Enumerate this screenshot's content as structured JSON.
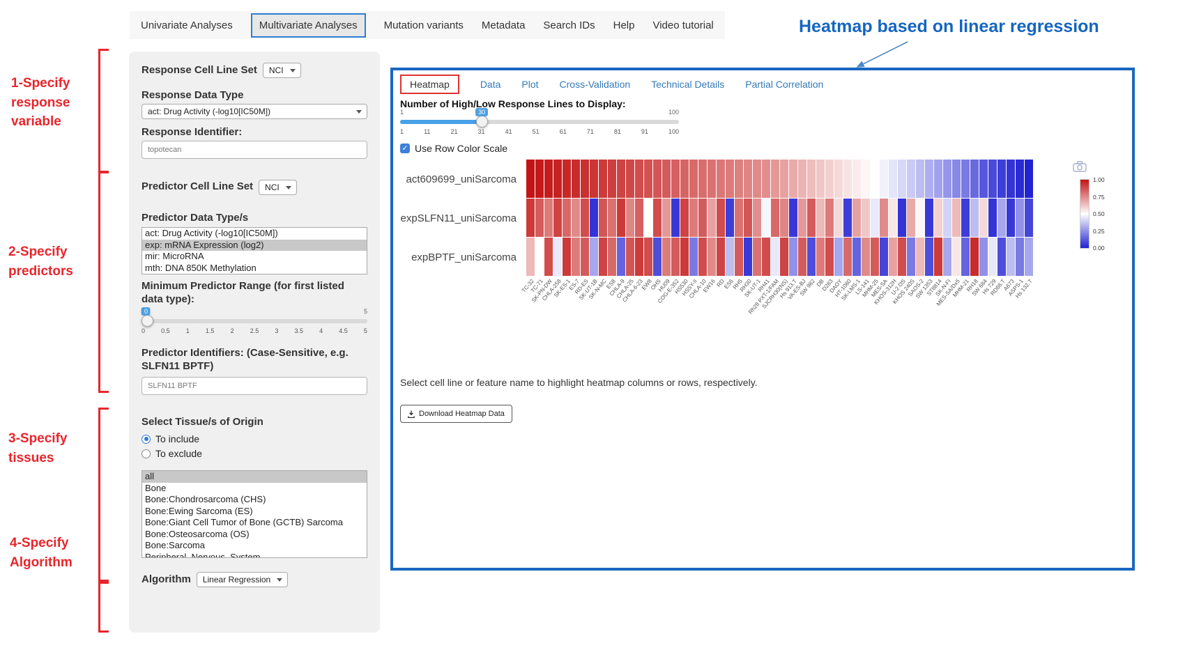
{
  "nav": {
    "items": [
      "Univariate Analyses",
      "Multivariate Analyses",
      "Mutation variants",
      "Metadata",
      "Search IDs",
      "Help",
      "Video tutorial"
    ],
    "active": "Multivariate Analyses"
  },
  "annotation": {
    "heading": "Heatmap based on linear regression",
    "steps": [
      "1-Specify\nresponse\nvariable",
      "2-Specify\npredictors",
      "3-Specify\ntissues",
      "4-Specify\nAlgorithm"
    ],
    "accent_color": "#e8252c",
    "heading_color": "#1565c0"
  },
  "sidebar": {
    "response_cell_line_set_label": "Response Cell Line Set",
    "response_cell_line_set_value": "NCI",
    "response_data_type_label": "Response Data Type",
    "response_data_type_value": "act: Drug Activity (-log10[IC50M])",
    "response_identifier_label": "Response Identifier:",
    "response_identifier_value": "topotecan",
    "predictor_cell_line_set_label": "Predictor Cell Line Set",
    "predictor_cell_line_set_value": "NCI",
    "predictor_data_types_label": "Predictor Data Type/s",
    "predictor_data_types_options": [
      "act: Drug Activity (-log10[IC50M])",
      "exp: mRNA Expression (log2)",
      "mir: MicroRNA",
      "mth: DNA 850K Methylation"
    ],
    "predictor_data_types_selected": "exp: mRNA Expression (log2)",
    "min_predictor_range_label": "Minimum Predictor Range (for first listed data type):",
    "min_predictor_range": {
      "min": 0,
      "max": 5,
      "value": 0,
      "min_label": "",
      "max_label": "5",
      "ticks": [
        "0",
        "0.5",
        "1",
        "1.5",
        "2",
        "2.5",
        "3",
        "3.5",
        "4",
        "4.5",
        "5"
      ]
    },
    "predictor_identifiers_label": "Predictor Identifiers: (Case-Sensitive, e.g. SLFN11 BPTF)",
    "predictor_identifiers_value": "SLFN11 BPTF",
    "tissue_label": "Select Tissue/s of Origin",
    "tissue_radios": [
      {
        "label": "To include",
        "selected": true
      },
      {
        "label": "To exclude",
        "selected": false
      }
    ],
    "tissue_options": [
      "all",
      "Bone",
      "Bone:Chondrosarcoma (CHS)",
      "Bone:Ewing Sarcoma (ES)",
      "Bone:Giant Cell Tumor of Bone (GCTB) Sarcoma",
      "Bone:Osteosarcoma (OS)",
      "Bone:Sarcoma",
      "Peripheral_Nervous_System"
    ],
    "tissue_selected": "all",
    "algorithm_label": "Algorithm",
    "algorithm_value": "Linear Regression"
  },
  "main": {
    "tabs": [
      "Heatmap",
      "Data",
      "Plot",
      "Cross-Validation",
      "Technical Details",
      "Partial Correlation"
    ],
    "active_tab": "Heatmap",
    "slider_label": "Number of High/Low Response Lines to Display:",
    "slider": {
      "min": 1,
      "max": 100,
      "value": 30,
      "min_label": "1",
      "max_label": "100",
      "ticks": [
        "1",
        "11",
        "21",
        "31",
        "41",
        "51",
        "61",
        "71",
        "81",
        "91",
        "100"
      ]
    },
    "row_color_scale_label": "Use Row Color Scale",
    "row_color_scale_checked": true,
    "note": "Select cell line or feature name to highlight heatmap columns or rows, respectively.",
    "download_button_label": "Download Heatmap Data"
  },
  "chart_data": {
    "type": "heatmap",
    "title": "",
    "rows": [
      "act609699_uniSarcoma",
      "expSLFN11_uniSarcoma",
      "expBPTF_uniSarcoma"
    ],
    "columns": [
      "TC-32",
      "TC-71",
      "SK-PN-DW",
      "CHLA-258",
      "SK-ES-1",
      "ES-7",
      "RD-ES",
      "SK-UT-1B",
      "SK-N-MC",
      "ES8",
      "CHLA-9",
      "CHLA-25",
      "CHLA-6-23",
      "EW8",
      "OHS",
      "HU09",
      "COG-E-352",
      "HS530",
      "HSSY-II",
      "CHLA-10",
      "EW16",
      "RD",
      "ES6",
      "RH5",
      "RH30",
      "SK-UT-1",
      "RH41",
      "Rh28 PXT-1/FAM",
      "SJCRH30(NS)",
      "Hs 913.T",
      "VA-ES-BJ",
      "SW 982",
      "DB",
      "D283",
      "DAOY",
      "HT-1080",
      "SK-LMS-1",
      "LS-141",
      "MHM-25",
      "MES-SA",
      "KHOS-312H",
      "U-2 OS",
      "KHOS 240S",
      "SAOS-2",
      "SW 1353",
      "ST8814",
      "SK-N-FI",
      "MES-SA/Dx5",
      "MHM-21",
      "RH18",
      "SW 684",
      "Hs 729",
      "RD68.T",
      "A673",
      "ASPS-1",
      "Hs 132.T"
    ],
    "values": [
      [
        1.0,
        0.99,
        0.98,
        0.97,
        0.96,
        0.95,
        0.94,
        0.93,
        0.92,
        0.91,
        0.9,
        0.89,
        0.88,
        0.87,
        0.86,
        0.85,
        0.84,
        0.83,
        0.82,
        0.81,
        0.8,
        0.79,
        0.78,
        0.77,
        0.76,
        0.75,
        0.74,
        0.72,
        0.7,
        0.68,
        0.66,
        0.64,
        0.62,
        0.6,
        0.58,
        0.56,
        0.54,
        0.52,
        0.5,
        0.47,
        0.44,
        0.41,
        0.38,
        0.35,
        0.32,
        0.29,
        0.26,
        0.23,
        0.2,
        0.16,
        0.12,
        0.09,
        0.06,
        0.04,
        0.02,
        0.0
      ],
      [
        0.92,
        0.85,
        0.78,
        0.9,
        0.82,
        0.75,
        0.88,
        0.04,
        0.86,
        0.8,
        0.92,
        0.76,
        0.84,
        0.5,
        0.88,
        0.72,
        0.05,
        0.9,
        0.78,
        0.85,
        0.7,
        0.88,
        0.06,
        0.8,
        0.86,
        0.74,
        0.48,
        0.82,
        0.76,
        0.05,
        0.72,
        0.85,
        0.65,
        0.78,
        0.58,
        0.06,
        0.7,
        0.62,
        0.45,
        0.75,
        0.55,
        0.04,
        0.68,
        0.52,
        0.05,
        0.6,
        0.4,
        0.65,
        0.06,
        0.35,
        0.58,
        0.04,
        0.3,
        0.05,
        0.25,
        0.08
      ],
      [
        0.65,
        0.5,
        0.88,
        0.45,
        0.92,
        0.78,
        0.85,
        0.3,
        0.9,
        0.82,
        0.15,
        0.86,
        0.92,
        0.88,
        0.1,
        0.78,
        0.85,
        0.92,
        0.2,
        0.88,
        0.75,
        0.9,
        0.35,
        0.85,
        0.05,
        0.8,
        0.88,
        0.45,
        0.9,
        0.25,
        0.85,
        0.1,
        0.78,
        0.88,
        0.3,
        0.82,
        0.15,
        0.75,
        0.85,
        0.08,
        0.7,
        0.88,
        0.2,
        0.65,
        0.1,
        0.92,
        0.3,
        0.55,
        0.15,
        0.95,
        0.25,
        0.45,
        0.1,
        0.35,
        0.2,
        0.3
      ]
    ],
    "colorscale": {
      "high_color": "#c21414",
      "mid_color": "#ffffff",
      "low_color": "#2222d2",
      "vmin": 0,
      "vmax": 1,
      "legend_ticks": [
        "1.00",
        "0.75",
        "0.50",
        "0.25",
        "0.00"
      ],
      "legend_position": "right"
    }
  }
}
